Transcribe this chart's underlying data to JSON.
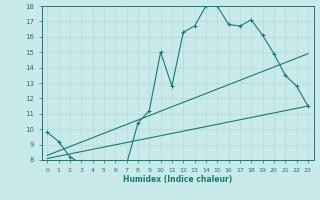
{
  "xlabel": "Humidex (Indice chaleur)",
  "bg_color": "#c8eaea",
  "line_color": "#1a7a6e",
  "grid_color": "#b8d8d8",
  "xlim": [
    -0.5,
    23.5
  ],
  "ylim": [
    8,
    18
  ],
  "xticks": [
    0,
    1,
    2,
    3,
    4,
    5,
    6,
    7,
    8,
    9,
    10,
    11,
    12,
    13,
    14,
    15,
    16,
    17,
    18,
    19,
    20,
    21,
    22,
    23
  ],
  "yticks": [
    8,
    9,
    10,
    11,
    12,
    13,
    14,
    15,
    16,
    17,
    18
  ],
  "line1_x": [
    0,
    1,
    2,
    3,
    4,
    5,
    6,
    7,
    8,
    9,
    10,
    11,
    12,
    13,
    14,
    15,
    16,
    17,
    18,
    19,
    20,
    21,
    22,
    23
  ],
  "line1_y": [
    9.8,
    9.2,
    8.2,
    7.75,
    7.9,
    7.85,
    7.8,
    7.75,
    10.4,
    11.2,
    15.0,
    12.8,
    16.3,
    16.7,
    18.0,
    18.0,
    16.8,
    16.7,
    17.1,
    16.1,
    14.9,
    13.5,
    12.8,
    11.5
  ],
  "line2_x": [
    0,
    23
  ],
  "line2_y": [
    8.1,
    11.5
  ],
  "line3_x": [
    0,
    23
  ],
  "line3_y": [
    8.3,
    14.9
  ]
}
